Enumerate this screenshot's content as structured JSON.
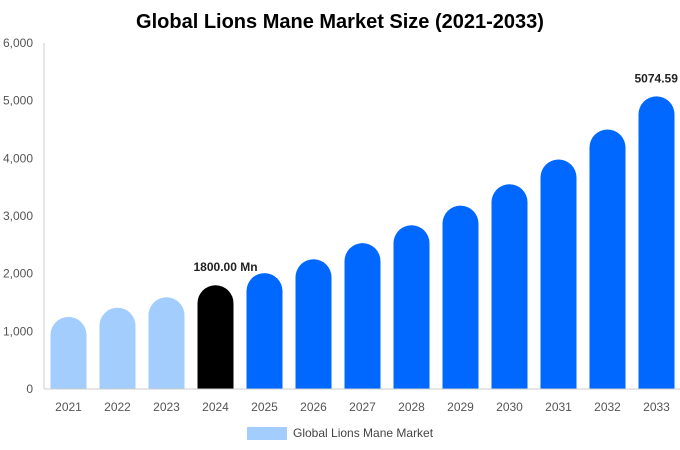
{
  "chart_data": {
    "type": "bar",
    "title": "Global Lions Mane Market Size (2021-2033)",
    "xlabel": "",
    "ylabel": "",
    "categories": [
      "2021",
      "2022",
      "2023",
      "2024",
      "2025",
      "2026",
      "2027",
      "2028",
      "2029",
      "2030",
      "2031",
      "2032",
      "2033"
    ],
    "series": [
      {
        "name": "Global Lions Mane Market",
        "values": [
          1250,
          1410,
          1590,
          1800,
          2010,
          2250,
          2530,
          2840,
          3180,
          3550,
          3980,
          4500,
          5074.59
        ]
      }
    ],
    "ylim": [
      0,
      6000
    ],
    "yticks": [
      "0",
      "1,000",
      "2,000",
      "3,000",
      "4,000",
      "5,000",
      "6,000"
    ],
    "ytick_values": [
      0,
      1000,
      2000,
      3000,
      4000,
      5000,
      6000
    ],
    "data_labels": [
      {
        "index": 3,
        "text": "1800.00 Mn"
      },
      {
        "index": 12,
        "text": "5074.59 Mn"
      }
    ],
    "grid": false,
    "legend": "bottom-center",
    "colors": {
      "historical": "#a3cdfc",
      "base_year": "#000000",
      "forecast": "#0068ff",
      "axis": "#cccccc"
    },
    "base_year_index": 3
  }
}
